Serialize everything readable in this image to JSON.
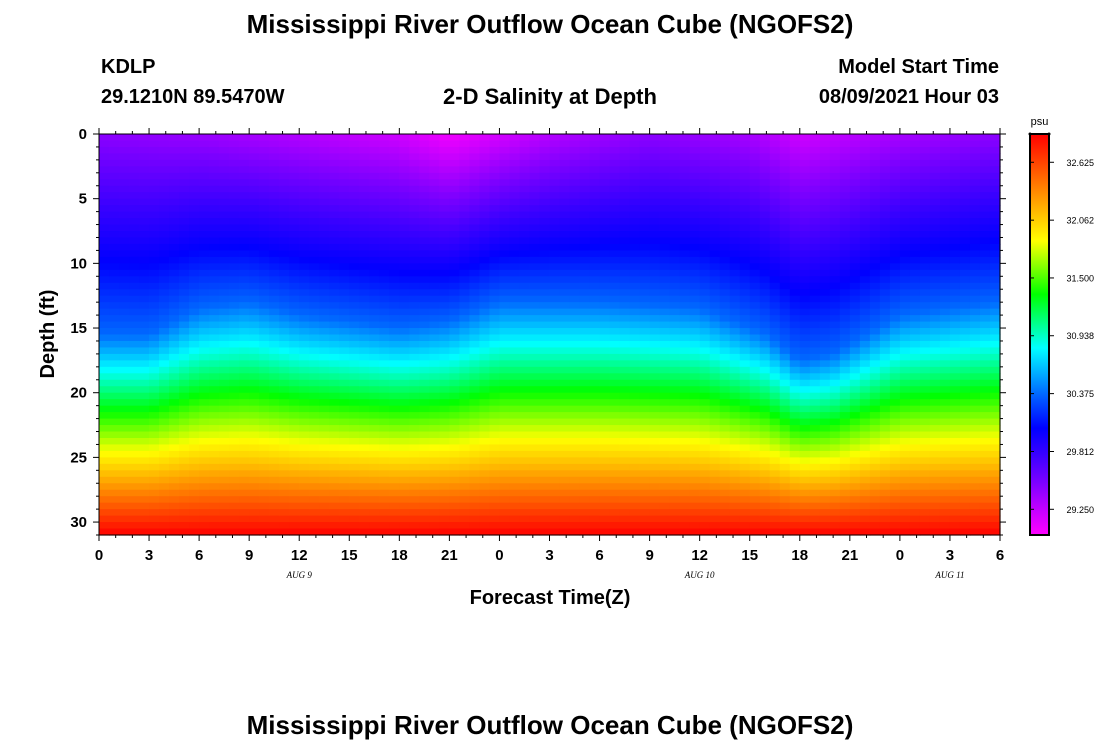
{
  "title": "Mississippi River Outflow Ocean Cube (NGOFS2)",
  "footer_title": "Mississippi River Outflow Ocean Cube (NGOFS2)",
  "station": {
    "id": "KDLP",
    "coords": "29.1210N  89.5470W"
  },
  "model": {
    "label": "Model Start Time",
    "value": "08/09/2021 Hour 03"
  },
  "chart_data": {
    "type": "heatmap",
    "title": "2-D Salinity at Depth",
    "xlabel": "Forecast Time(Z)",
    "ylabel": "Depth (ft)",
    "x_tick_labels": [
      "0",
      "3",
      "6",
      "9",
      "12",
      "15",
      "18",
      "21",
      "0",
      "3",
      "6",
      "9",
      "12",
      "15",
      "18",
      "21",
      "0",
      "3",
      "6"
    ],
    "x_range_hours": [
      0,
      54
    ],
    "x_tick_step_hours": 3,
    "date_labels": [
      {
        "text": "AUG 9",
        "hour": 12
      },
      {
        "text": "AUG 10",
        "hour": 36
      },
      {
        "text": "AUG 11",
        "hour": 51
      }
    ],
    "y_tick_labels": [
      "0",
      "5",
      "10",
      "15",
      "20",
      "25",
      "30"
    ],
    "y_ticks": [
      0,
      5,
      10,
      15,
      20,
      25,
      30
    ],
    "ylim": [
      0,
      31
    ],
    "y_inverted": true,
    "colorbar": {
      "unit": "psu",
      "tick_labels": [
        "32.625",
        "32.062",
        "31.500",
        "30.938",
        "30.375",
        "29.812",
        "29.250"
      ],
      "tick_values": [
        32.625,
        32.062,
        31.5,
        30.938,
        30.375,
        29.812,
        29.25
      ],
      "range": [
        29.0,
        32.9
      ],
      "colors": [
        "#ff00ff",
        "#c000ff",
        "#7a00ff",
        "#3a00ff",
        "#0000ff",
        "#0050ff",
        "#00a8ff",
        "#00ffff",
        "#00ff80",
        "#00ff00",
        "#80ff00",
        "#ffff00",
        "#ffc000",
        "#ff8000",
        "#ff4000",
        "#ff0000"
      ]
    },
    "field": {
      "description": "salinity (psu) by forecast hour and depth",
      "surface_salinity_by_hour": [
        [
          0,
          29.45
        ],
        [
          6,
          29.4
        ],
        [
          12,
          29.3
        ],
        [
          18,
          29.2
        ],
        [
          21,
          29.05
        ],
        [
          27,
          29.3
        ],
        [
          33,
          29.45
        ],
        [
          39,
          29.35
        ],
        [
          42,
          29.2
        ],
        [
          48,
          29.35
        ],
        [
          54,
          29.45
        ]
      ],
      "isoline_depth_ft_30_375_by_hour": [
        [
          0,
          15.5
        ],
        [
          3,
          15.5
        ],
        [
          6,
          13.5
        ],
        [
          9,
          13.0
        ],
        [
          12,
          14.0
        ],
        [
          15,
          14.5
        ],
        [
          18,
          15.0
        ],
        [
          21,
          14.5
        ],
        [
          24,
          13.0
        ],
        [
          30,
          13.0
        ],
        [
          36,
          13.5
        ],
        [
          40,
          15.5
        ],
        [
          42,
          17.5
        ],
        [
          44,
          17.0
        ],
        [
          48,
          14.0
        ],
        [
          54,
          13.0
        ]
      ],
      "bottom_salinity": 32.9
    }
  }
}
